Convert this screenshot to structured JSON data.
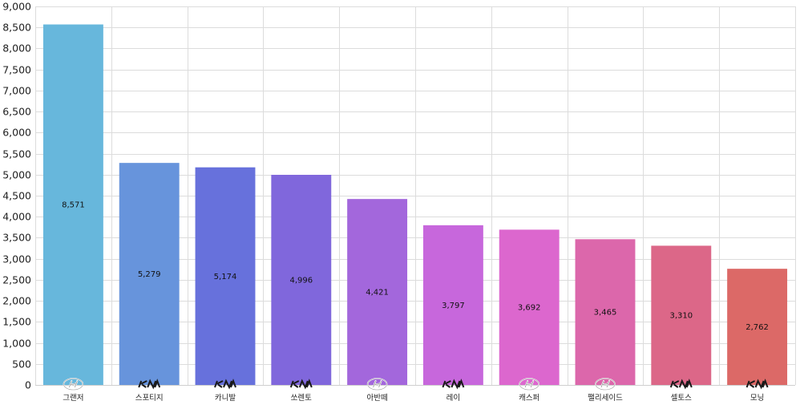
{
  "chart_data": {
    "type": "bar",
    "title": "",
    "xlabel": "",
    "ylabel": "",
    "ylim": [
      0,
      9000
    ],
    "ytick_step": 500,
    "grid": true,
    "categories": [
      "그랜저",
      "스포티지",
      "카니발",
      "쏘렌토",
      "아반떼",
      "레이",
      "캐스퍼",
      "팰리세이드",
      "셀토스",
      "모닝"
    ],
    "values": [
      8571,
      5279,
      5174,
      4996,
      4421,
      3797,
      3692,
      3465,
      3310,
      2762
    ],
    "value_labels": [
      "8,571",
      "5,279",
      "5,174",
      "4,996",
      "4,421",
      "3,797",
      "3,692",
      "3,465",
      "3,310",
      "2,762"
    ],
    "brand_icons": [
      "hyundai-logo-icon",
      "kia-logo-icon",
      "kia-logo-icon",
      "kia-logo-icon",
      "hyundai-logo-icon",
      "kia-logo-icon",
      "hyundai-logo-icon",
      "hyundai-logo-icon",
      "kia-logo-icon",
      "kia-logo-icon"
    ],
    "colors": [
      "#67b7dc",
      "#6794dc",
      "#6771dc",
      "#8067dc",
      "#a367dc",
      "#c767dc",
      "#dc67ce",
      "#dc67ab",
      "#dc6788",
      "#dc6967"
    ]
  }
}
